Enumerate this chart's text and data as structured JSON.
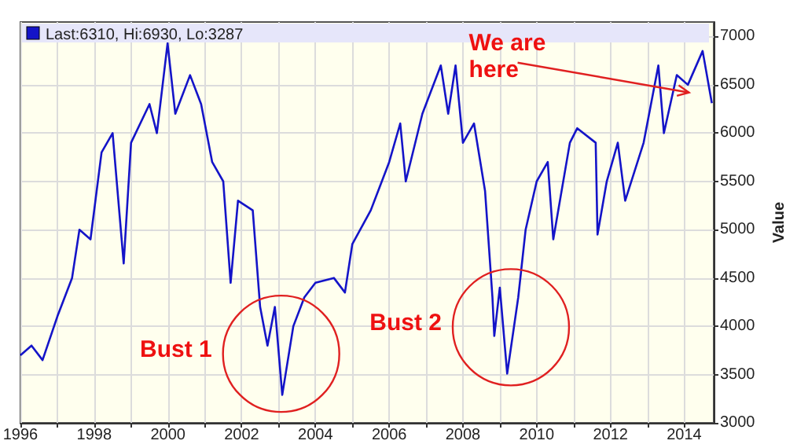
{
  "chart_data": {
    "type": "line",
    "ylabel": "Value",
    "annotations": [
      "Last:6310, Hi:6930, Lo:3287",
      {
        "text": "Bust 1",
        "x": 2003.07,
        "y": 3715
      },
      {
        "text": "Bust 2",
        "x": 2009.3,
        "y": 3990
      },
      {
        "text": "We are here",
        "x": 2014.13,
        "y": 6420
      }
    ],
    "x": [
      1996.0,
      1996.3,
      1996.6,
      1997.0,
      1997.4,
      1997.6,
      1997.9,
      1998.2,
      1998.5,
      1998.8,
      1999.0,
      1999.5,
      1999.7,
      1999.99,
      2000.2,
      2000.6,
      2000.9,
      2001.2,
      2001.5,
      2001.7,
      2001.9,
      2002.3,
      2002.5,
      2002.7,
      2002.9,
      2003.1,
      2003.4,
      2003.7,
      2004.0,
      2004.5,
      2004.8,
      2005.0,
      2005.5,
      2006.0,
      2006.3,
      2006.45,
      2006.9,
      2007.4,
      2007.6,
      2007.8,
      2008.0,
      2008.3,
      2008.6,
      2008.8,
      2008.85,
      2009.0,
      2009.2,
      2009.5,
      2009.7,
      2010.0,
      2010.3,
      2010.45,
      2010.9,
      2011.1,
      2011.6,
      2011.65,
      2011.9,
      2012.2,
      2012.4,
      2012.9,
      2013.3,
      2013.45,
      2013.8,
      2014.1,
      2014.5,
      2014.75
    ],
    "series": [
      {
        "color": "#1414c8",
        "values": [
          3700,
          3800,
          3650,
          4100,
          4500,
          5000,
          4900,
          5800,
          6000,
          4650,
          5900,
          6300,
          6000,
          6930,
          6200,
          6600,
          6300,
          5700,
          5500,
          4450,
          5300,
          5200,
          4200,
          3800,
          4200,
          3290,
          4000,
          4300,
          4450,
          4500,
          4350,
          4850,
          5200,
          5700,
          6100,
          5500,
          6200,
          6700,
          6200,
          6700,
          5900,
          6100,
          5400,
          4300,
          3900,
          4400,
          3510,
          4300,
          5000,
          5500,
          5700,
          4900,
          5900,
          6050,
          5900,
          4950,
          5500,
          5900,
          5300,
          5900,
          6700,
          6000,
          6600,
          6500,
          6850,
          6310
        ]
      }
    ],
    "xlim": [
      1996,
      2014.8
    ],
    "xticks": [
      1996,
      {
        "value": 1997,
        "label": null
      },
      1998,
      {
        "value": 1999,
        "label": null
      },
      2000,
      {
        "value": 2001,
        "label": null
      },
      2002,
      {
        "value": 2003,
        "label": null
      },
      2004,
      {
        "value": 2005,
        "label": null
      },
      2006,
      {
        "value": 2007,
        "label": null
      },
      2008,
      {
        "value": 2009,
        "label": null
      },
      2010,
      {
        "value": 2011,
        "label": null
      },
      2012,
      {
        "value": 2013,
        "label": null
      },
      2014
    ],
    "ylim": [
      3000,
      7150
    ],
    "yticks": [
      3000,
      3500,
      4000,
      4500,
      5000,
      5500,
      6000,
      6500,
      7000
    ],
    "grid": true,
    "marker": "none",
    "line_style": "solid"
  }
}
